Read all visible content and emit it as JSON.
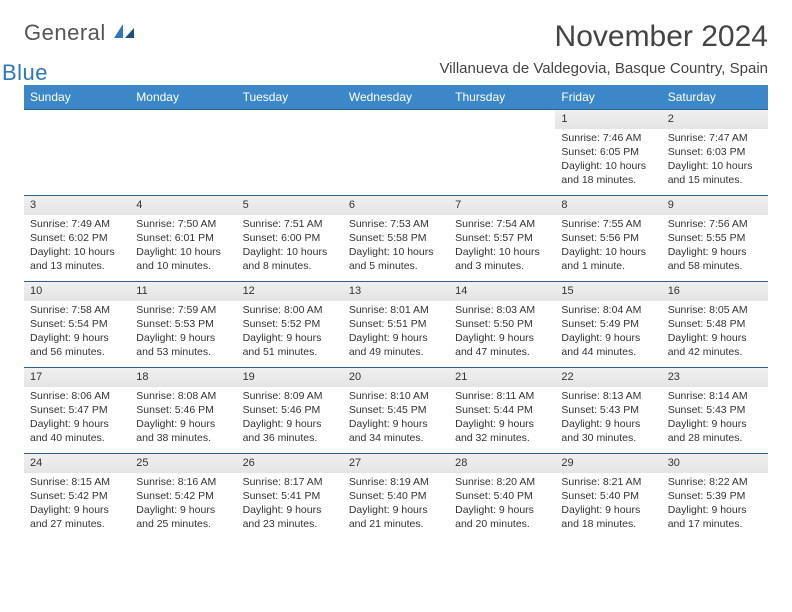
{
  "logo": {
    "text1": "General",
    "text2": "Blue"
  },
  "title": "November 2024",
  "location": "Villanueva de Valdegovia, Basque Country, Spain",
  "header_bg": "#3b87c8",
  "header_fg": "#ffffff",
  "border_color": "#2f5f8f",
  "daynum_bg": "#ececec",
  "day_names": [
    "Sunday",
    "Monday",
    "Tuesday",
    "Wednesday",
    "Thursday",
    "Friday",
    "Saturday"
  ],
  "weeks": [
    [
      null,
      null,
      null,
      null,
      null,
      {
        "n": "1",
        "sr": "Sunrise: 7:46 AM",
        "ss": "Sunset: 6:05 PM",
        "dl": "Daylight: 10 hours and 18 minutes."
      },
      {
        "n": "2",
        "sr": "Sunrise: 7:47 AM",
        "ss": "Sunset: 6:03 PM",
        "dl": "Daylight: 10 hours and 15 minutes."
      }
    ],
    [
      {
        "n": "3",
        "sr": "Sunrise: 7:49 AM",
        "ss": "Sunset: 6:02 PM",
        "dl": "Daylight: 10 hours and 13 minutes."
      },
      {
        "n": "4",
        "sr": "Sunrise: 7:50 AM",
        "ss": "Sunset: 6:01 PM",
        "dl": "Daylight: 10 hours and 10 minutes."
      },
      {
        "n": "5",
        "sr": "Sunrise: 7:51 AM",
        "ss": "Sunset: 6:00 PM",
        "dl": "Daylight: 10 hours and 8 minutes."
      },
      {
        "n": "6",
        "sr": "Sunrise: 7:53 AM",
        "ss": "Sunset: 5:58 PM",
        "dl": "Daylight: 10 hours and 5 minutes."
      },
      {
        "n": "7",
        "sr": "Sunrise: 7:54 AM",
        "ss": "Sunset: 5:57 PM",
        "dl": "Daylight: 10 hours and 3 minutes."
      },
      {
        "n": "8",
        "sr": "Sunrise: 7:55 AM",
        "ss": "Sunset: 5:56 PM",
        "dl": "Daylight: 10 hours and 1 minute."
      },
      {
        "n": "9",
        "sr": "Sunrise: 7:56 AM",
        "ss": "Sunset: 5:55 PM",
        "dl": "Daylight: 9 hours and 58 minutes."
      }
    ],
    [
      {
        "n": "10",
        "sr": "Sunrise: 7:58 AM",
        "ss": "Sunset: 5:54 PM",
        "dl": "Daylight: 9 hours and 56 minutes."
      },
      {
        "n": "11",
        "sr": "Sunrise: 7:59 AM",
        "ss": "Sunset: 5:53 PM",
        "dl": "Daylight: 9 hours and 53 minutes."
      },
      {
        "n": "12",
        "sr": "Sunrise: 8:00 AM",
        "ss": "Sunset: 5:52 PM",
        "dl": "Daylight: 9 hours and 51 minutes."
      },
      {
        "n": "13",
        "sr": "Sunrise: 8:01 AM",
        "ss": "Sunset: 5:51 PM",
        "dl": "Daylight: 9 hours and 49 minutes."
      },
      {
        "n": "14",
        "sr": "Sunrise: 8:03 AM",
        "ss": "Sunset: 5:50 PM",
        "dl": "Daylight: 9 hours and 47 minutes."
      },
      {
        "n": "15",
        "sr": "Sunrise: 8:04 AM",
        "ss": "Sunset: 5:49 PM",
        "dl": "Daylight: 9 hours and 44 minutes."
      },
      {
        "n": "16",
        "sr": "Sunrise: 8:05 AM",
        "ss": "Sunset: 5:48 PM",
        "dl": "Daylight: 9 hours and 42 minutes."
      }
    ],
    [
      {
        "n": "17",
        "sr": "Sunrise: 8:06 AM",
        "ss": "Sunset: 5:47 PM",
        "dl": "Daylight: 9 hours and 40 minutes."
      },
      {
        "n": "18",
        "sr": "Sunrise: 8:08 AM",
        "ss": "Sunset: 5:46 PM",
        "dl": "Daylight: 9 hours and 38 minutes."
      },
      {
        "n": "19",
        "sr": "Sunrise: 8:09 AM",
        "ss": "Sunset: 5:46 PM",
        "dl": "Daylight: 9 hours and 36 minutes."
      },
      {
        "n": "20",
        "sr": "Sunrise: 8:10 AM",
        "ss": "Sunset: 5:45 PM",
        "dl": "Daylight: 9 hours and 34 minutes."
      },
      {
        "n": "21",
        "sr": "Sunrise: 8:11 AM",
        "ss": "Sunset: 5:44 PM",
        "dl": "Daylight: 9 hours and 32 minutes."
      },
      {
        "n": "22",
        "sr": "Sunrise: 8:13 AM",
        "ss": "Sunset: 5:43 PM",
        "dl": "Daylight: 9 hours and 30 minutes."
      },
      {
        "n": "23",
        "sr": "Sunrise: 8:14 AM",
        "ss": "Sunset: 5:43 PM",
        "dl": "Daylight: 9 hours and 28 minutes."
      }
    ],
    [
      {
        "n": "24",
        "sr": "Sunrise: 8:15 AM",
        "ss": "Sunset: 5:42 PM",
        "dl": "Daylight: 9 hours and 27 minutes."
      },
      {
        "n": "25",
        "sr": "Sunrise: 8:16 AM",
        "ss": "Sunset: 5:42 PM",
        "dl": "Daylight: 9 hours and 25 minutes."
      },
      {
        "n": "26",
        "sr": "Sunrise: 8:17 AM",
        "ss": "Sunset: 5:41 PM",
        "dl": "Daylight: 9 hours and 23 minutes."
      },
      {
        "n": "27",
        "sr": "Sunrise: 8:19 AM",
        "ss": "Sunset: 5:40 PM",
        "dl": "Daylight: 9 hours and 21 minutes."
      },
      {
        "n": "28",
        "sr": "Sunrise: 8:20 AM",
        "ss": "Sunset: 5:40 PM",
        "dl": "Daylight: 9 hours and 20 minutes."
      },
      {
        "n": "29",
        "sr": "Sunrise: 8:21 AM",
        "ss": "Sunset: 5:40 PM",
        "dl": "Daylight: 9 hours and 18 minutes."
      },
      {
        "n": "30",
        "sr": "Sunrise: 8:22 AM",
        "ss": "Sunset: 5:39 PM",
        "dl": "Daylight: 9 hours and 17 minutes."
      }
    ]
  ]
}
